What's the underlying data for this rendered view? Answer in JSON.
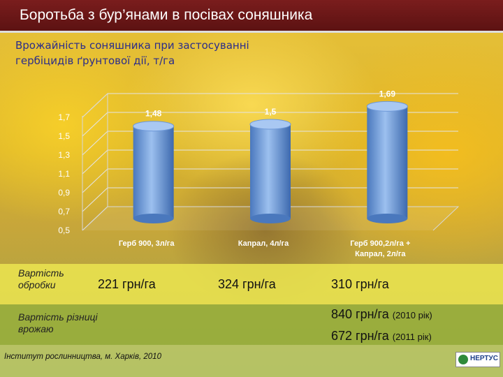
{
  "header": {
    "title": "Боротьба з бур’янами в посівах соняшника"
  },
  "subtitle": {
    "line1": "Врожайність соняшника при застосуванні",
    "line2": "гербіцидів ґрунтової дії, т/га"
  },
  "chart_data": {
    "type": "bar",
    "title": "Врожайність соняшника при застосуванні гербіцидів ґрунтової дії, т/га",
    "categories": [
      [
        "Герб 900, 3л/га"
      ],
      [
        "Капрал, 4л/га"
      ],
      [
        "Герб 900,2л/га +",
        "Капрал, 2л/га"
      ]
    ],
    "values": [
      1.48,
      1.5,
      1.69
    ],
    "value_labels": [
      "1,48",
      "1,5",
      "1,69"
    ],
    "yticks": [
      0.5,
      0.7,
      0.9,
      1.1,
      1.3,
      1.5,
      1.7
    ],
    "ytick_labels": [
      "0,5",
      "0,7",
      "0,9",
      "1,1",
      "1,3",
      "1,5",
      "1,7"
    ],
    "ylim": [
      0.5,
      1.7
    ],
    "grid": true,
    "legend": "none",
    "bar_color": "#5b8fd6"
  },
  "table": {
    "cost_label": [
      "Вартість",
      "обробки"
    ],
    "costs": [
      "221 грн/га",
      "324 грн/га",
      "310 грн/га"
    ],
    "diff_label": [
      "Вартість різниці",
      "врожаю"
    ],
    "diff_2010_value": "840 грн/га",
    "diff_2010_note": "(2010 рік)",
    "diff_2011_value": "672 грн/га",
    "diff_2011_note": "(2011 рік)"
  },
  "footer": {
    "institute": "Інститут рослинництва, м. Харків, 2010",
    "logo_text": "НЕРТУС"
  }
}
